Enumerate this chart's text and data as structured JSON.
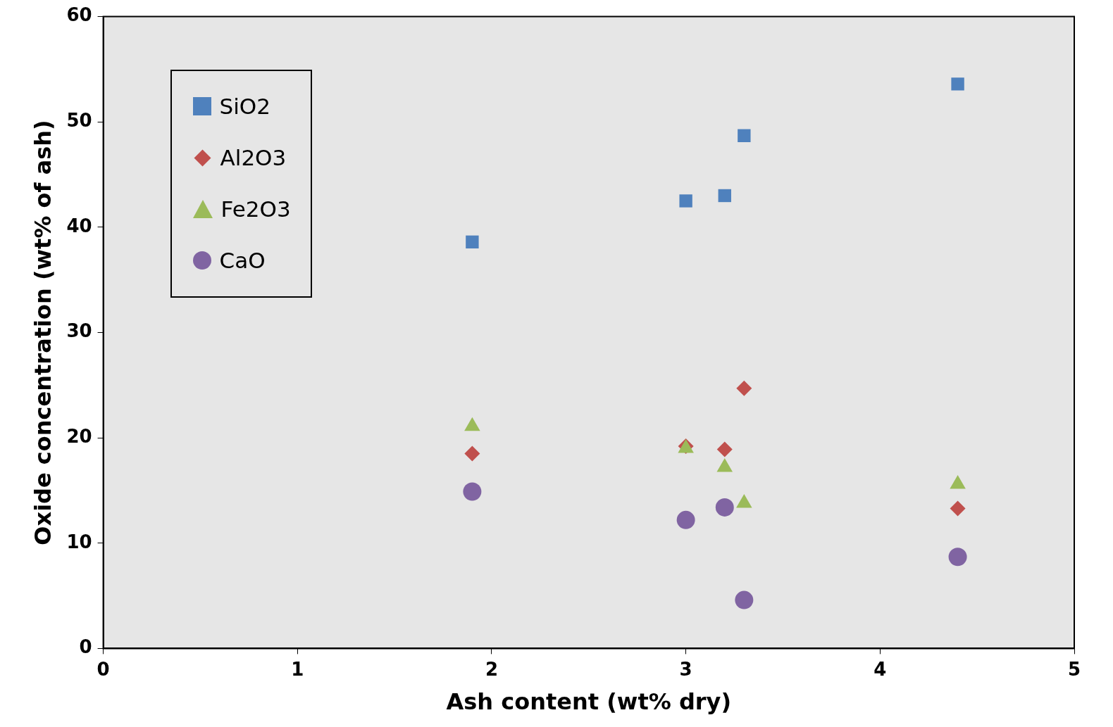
{
  "chart_data": {
    "type": "scatter",
    "xlabel": "Ash content (wt% dry)",
    "ylabel": "Oxide concentration (wt% of ash)",
    "xlim": [
      0,
      5
    ],
    "xticks": [
      0,
      1,
      2,
      3,
      4,
      5
    ],
    "ylim": [
      0,
      60
    ],
    "yticks": [
      0,
      10,
      20,
      30,
      40,
      50,
      60
    ],
    "grid": false,
    "legend": "top left",
    "x": [
      1.9,
      3.0,
      3.2,
      3.3,
      4.4
    ],
    "series": [
      {
        "name": "SiO2",
        "color": "#4f81bd",
        "marker": "square",
        "values": [
          38.6,
          42.5,
          43.0,
          48.7,
          53.6
        ]
      },
      {
        "name": "Al2O3",
        "color": "#c0504d",
        "marker": "diamond",
        "values": [
          18.5,
          19.2,
          18.9,
          24.7,
          13.3
        ]
      },
      {
        "name": "Fe2O3",
        "color": "#9bbb59",
        "marker": "triangle",
        "values": [
          21.1,
          19.0,
          17.2,
          13.8,
          15.6
        ]
      },
      {
        "name": "CaO",
        "color": "#8064a2",
        "marker": "circle",
        "values": [
          14.9,
          12.2,
          13.4,
          4.6,
          8.7
        ]
      }
    ]
  }
}
